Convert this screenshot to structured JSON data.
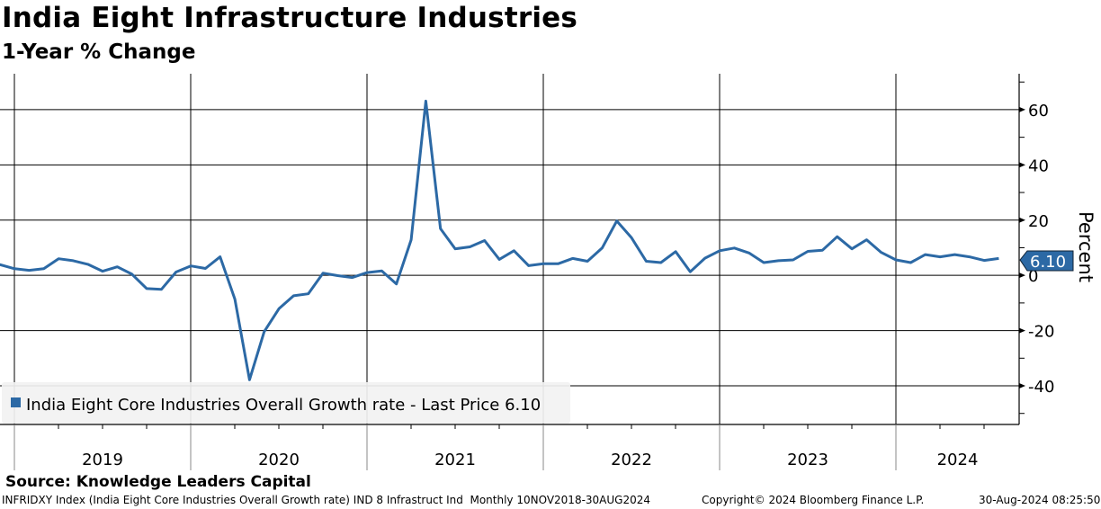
{
  "header": {
    "title": "India Eight Infrastructure Industries",
    "subtitle": "1-Year % Change"
  },
  "footer": {
    "source": "Source: Knowledge Leaders Capital",
    "ticker_info": "INFRIDXY Index (India Eight Core Industries Overall Growth rate) IND 8 Infrastruct Ind  Monthly 10NOV2018-30AUG2024",
    "copyright": "Copyright© 2024 Bloomberg Finance L.P.",
    "timestamp": "30-Aug-2024 08:25:50"
  },
  "colors": {
    "line": "#2c69a5",
    "legend_bg": "#f2f2f2"
  },
  "chart_data": {
    "type": "line",
    "title": "India Eight Infrastructure Industries",
    "subtitle": "1-Year % Change",
    "ylabel": "Percent",
    "xlabel": "",
    "ylim": [
      -54,
      73
    ],
    "yticks": [
      -40,
      -20,
      0,
      20,
      40,
      60
    ],
    "ytick_labels": [
      "-40",
      "-20",
      "0",
      "20",
      "40",
      "60"
    ],
    "xlim_years": [
      2018.917,
      2024.71
    ],
    "x_start_year_fraction": 2018.917,
    "x_step_months": 1,
    "year_labels": [
      "2019",
      "2020",
      "2021",
      "2022",
      "2023",
      "2024"
    ],
    "grid": true,
    "legend": {
      "position": "bottom-left",
      "label": "India Eight Core Industries Overall Growth rate - Last Price 6.10"
    },
    "last_value_label": "6.10",
    "series": [
      {
        "name": "India Eight Core Industries Overall Growth rate",
        "values": [
          3.9,
          2.4,
          1.8,
          2.4,
          6.0,
          5.3,
          4.0,
          1.5,
          3.1,
          0.4,
          -4.8,
          -5.1,
          1.2,
          3.4,
          2.5,
          6.7,
          -8.6,
          -37.8,
          -20.4,
          -12.1,
          -7.4,
          -6.7,
          0.8,
          -0.1,
          -0.8,
          1.0,
          1.6,
          -3.1,
          12.9,
          63.1,
          16.9,
          9.6,
          10.3,
          12.6,
          5.8,
          8.9,
          3.5,
          4.2,
          4.2,
          6.1,
          5.1,
          9.9,
          19.7,
          13.6,
          5.1,
          4.6,
          8.6,
          1.3,
          6.2,
          8.9,
          9.9,
          8.1,
          4.6,
          5.3,
          5.6,
          8.7,
          9.1,
          14.0,
          9.6,
          12.9,
          8.3,
          5.6,
          4.6,
          7.5,
          6.7,
          7.5,
          6.7,
          5.4,
          6.1
        ]
      }
    ]
  }
}
